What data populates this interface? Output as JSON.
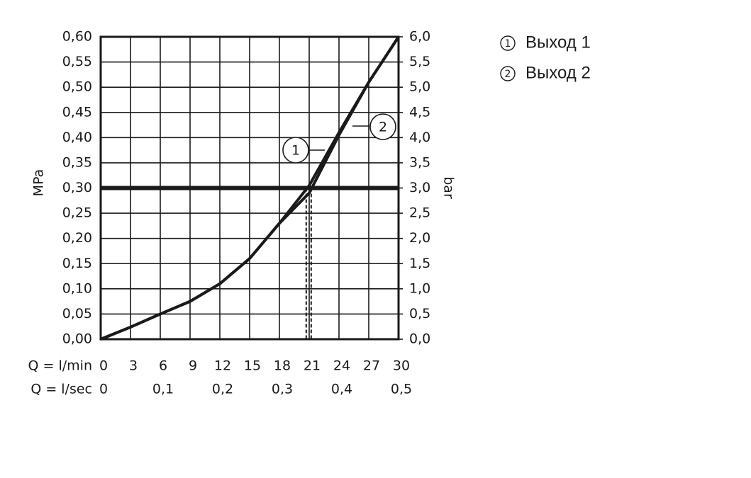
{
  "chart_data": {
    "type": "line",
    "ylabel": "MPa",
    "y2label": "bar",
    "xlabel": "Q = l/min",
    "x2label": "Q = l/sec",
    "x": [
      0,
      3,
      6,
      9,
      12,
      15,
      18,
      21,
      24,
      27,
      30
    ],
    "series": [
      {
        "name": "Выход 1",
        "label": "1",
        "color": "#1a1a1a",
        "values": [
          0,
          0.024,
          0.05,
          0.075,
          0.11,
          0.16,
          0.23,
          0.305,
          0.41,
          0.51,
          0.6
        ]
      },
      {
        "name": "Выход 2",
        "label": "2",
        "color": "#1a1a1a",
        "values": [
          0,
          0.024,
          0.05,
          0.075,
          0.11,
          0.16,
          0.23,
          0.29,
          0.405,
          0.51,
          0.6
        ]
      }
    ],
    "xlim": [
      0,
      30
    ],
    "xticks": [
      0,
      3,
      6,
      9,
      12,
      15,
      18,
      21,
      24,
      27,
      30
    ],
    "x2lim": [
      0,
      0.5
    ],
    "x2ticks": [
      0,
      {
        "value": 0.1,
        "label": "0,1"
      },
      {
        "value": 0.2,
        "label": "0,2"
      },
      {
        "value": 0.3,
        "label": "0,3"
      },
      {
        "value": 0.4,
        "label": "0,4"
      },
      {
        "value": 0.5,
        "label": "0,5"
      }
    ],
    "ylim": [
      0,
      0.6
    ],
    "yticks": [
      {
        "value": 0,
        "label": "0,00"
      },
      {
        "value": 0.05,
        "label": "0,05"
      },
      {
        "value": 0.1,
        "label": "0,10"
      },
      {
        "value": 0.15,
        "label": "0,15"
      },
      {
        "value": 0.2,
        "label": "0,20"
      },
      {
        "value": 0.25,
        "label": "0,25"
      },
      {
        "value": 0.3,
        "label": "0,30"
      },
      {
        "value": 0.35,
        "label": "0,35"
      },
      {
        "value": 0.4,
        "label": "0,40"
      },
      {
        "value": 0.45,
        "label": "0,45"
      },
      {
        "value": 0.5,
        "label": "0,50"
      },
      {
        "value": 0.55,
        "label": "0,55"
      },
      {
        "value": 0.6,
        "label": "0,60"
      }
    ],
    "y2lim": [
      0,
      6
    ],
    "y2ticks": [
      {
        "value": 0,
        "label": "0,0"
      },
      {
        "value": 0.5,
        "label": "0,5"
      },
      {
        "value": 1,
        "label": "1,0"
      },
      {
        "value": 1.5,
        "label": "1,5"
      },
      {
        "value": 2,
        "label": "2,0"
      },
      {
        "value": 2.5,
        "label": "2,5"
      },
      {
        "value": 3,
        "label": "3,0"
      },
      {
        "value": 3.5,
        "label": "3,5"
      },
      {
        "value": 4,
        "label": "4,0"
      },
      {
        "value": 4.5,
        "label": "4,5"
      },
      {
        "value": 5,
        "label": "5,0"
      },
      {
        "value": 5.5,
        "label": "5,5"
      },
      {
        "value": 6,
        "label": "6,0"
      }
    ],
    "hline": 0.3,
    "vlines": [
      20.7,
      21.2
    ],
    "grid": true
  }
}
